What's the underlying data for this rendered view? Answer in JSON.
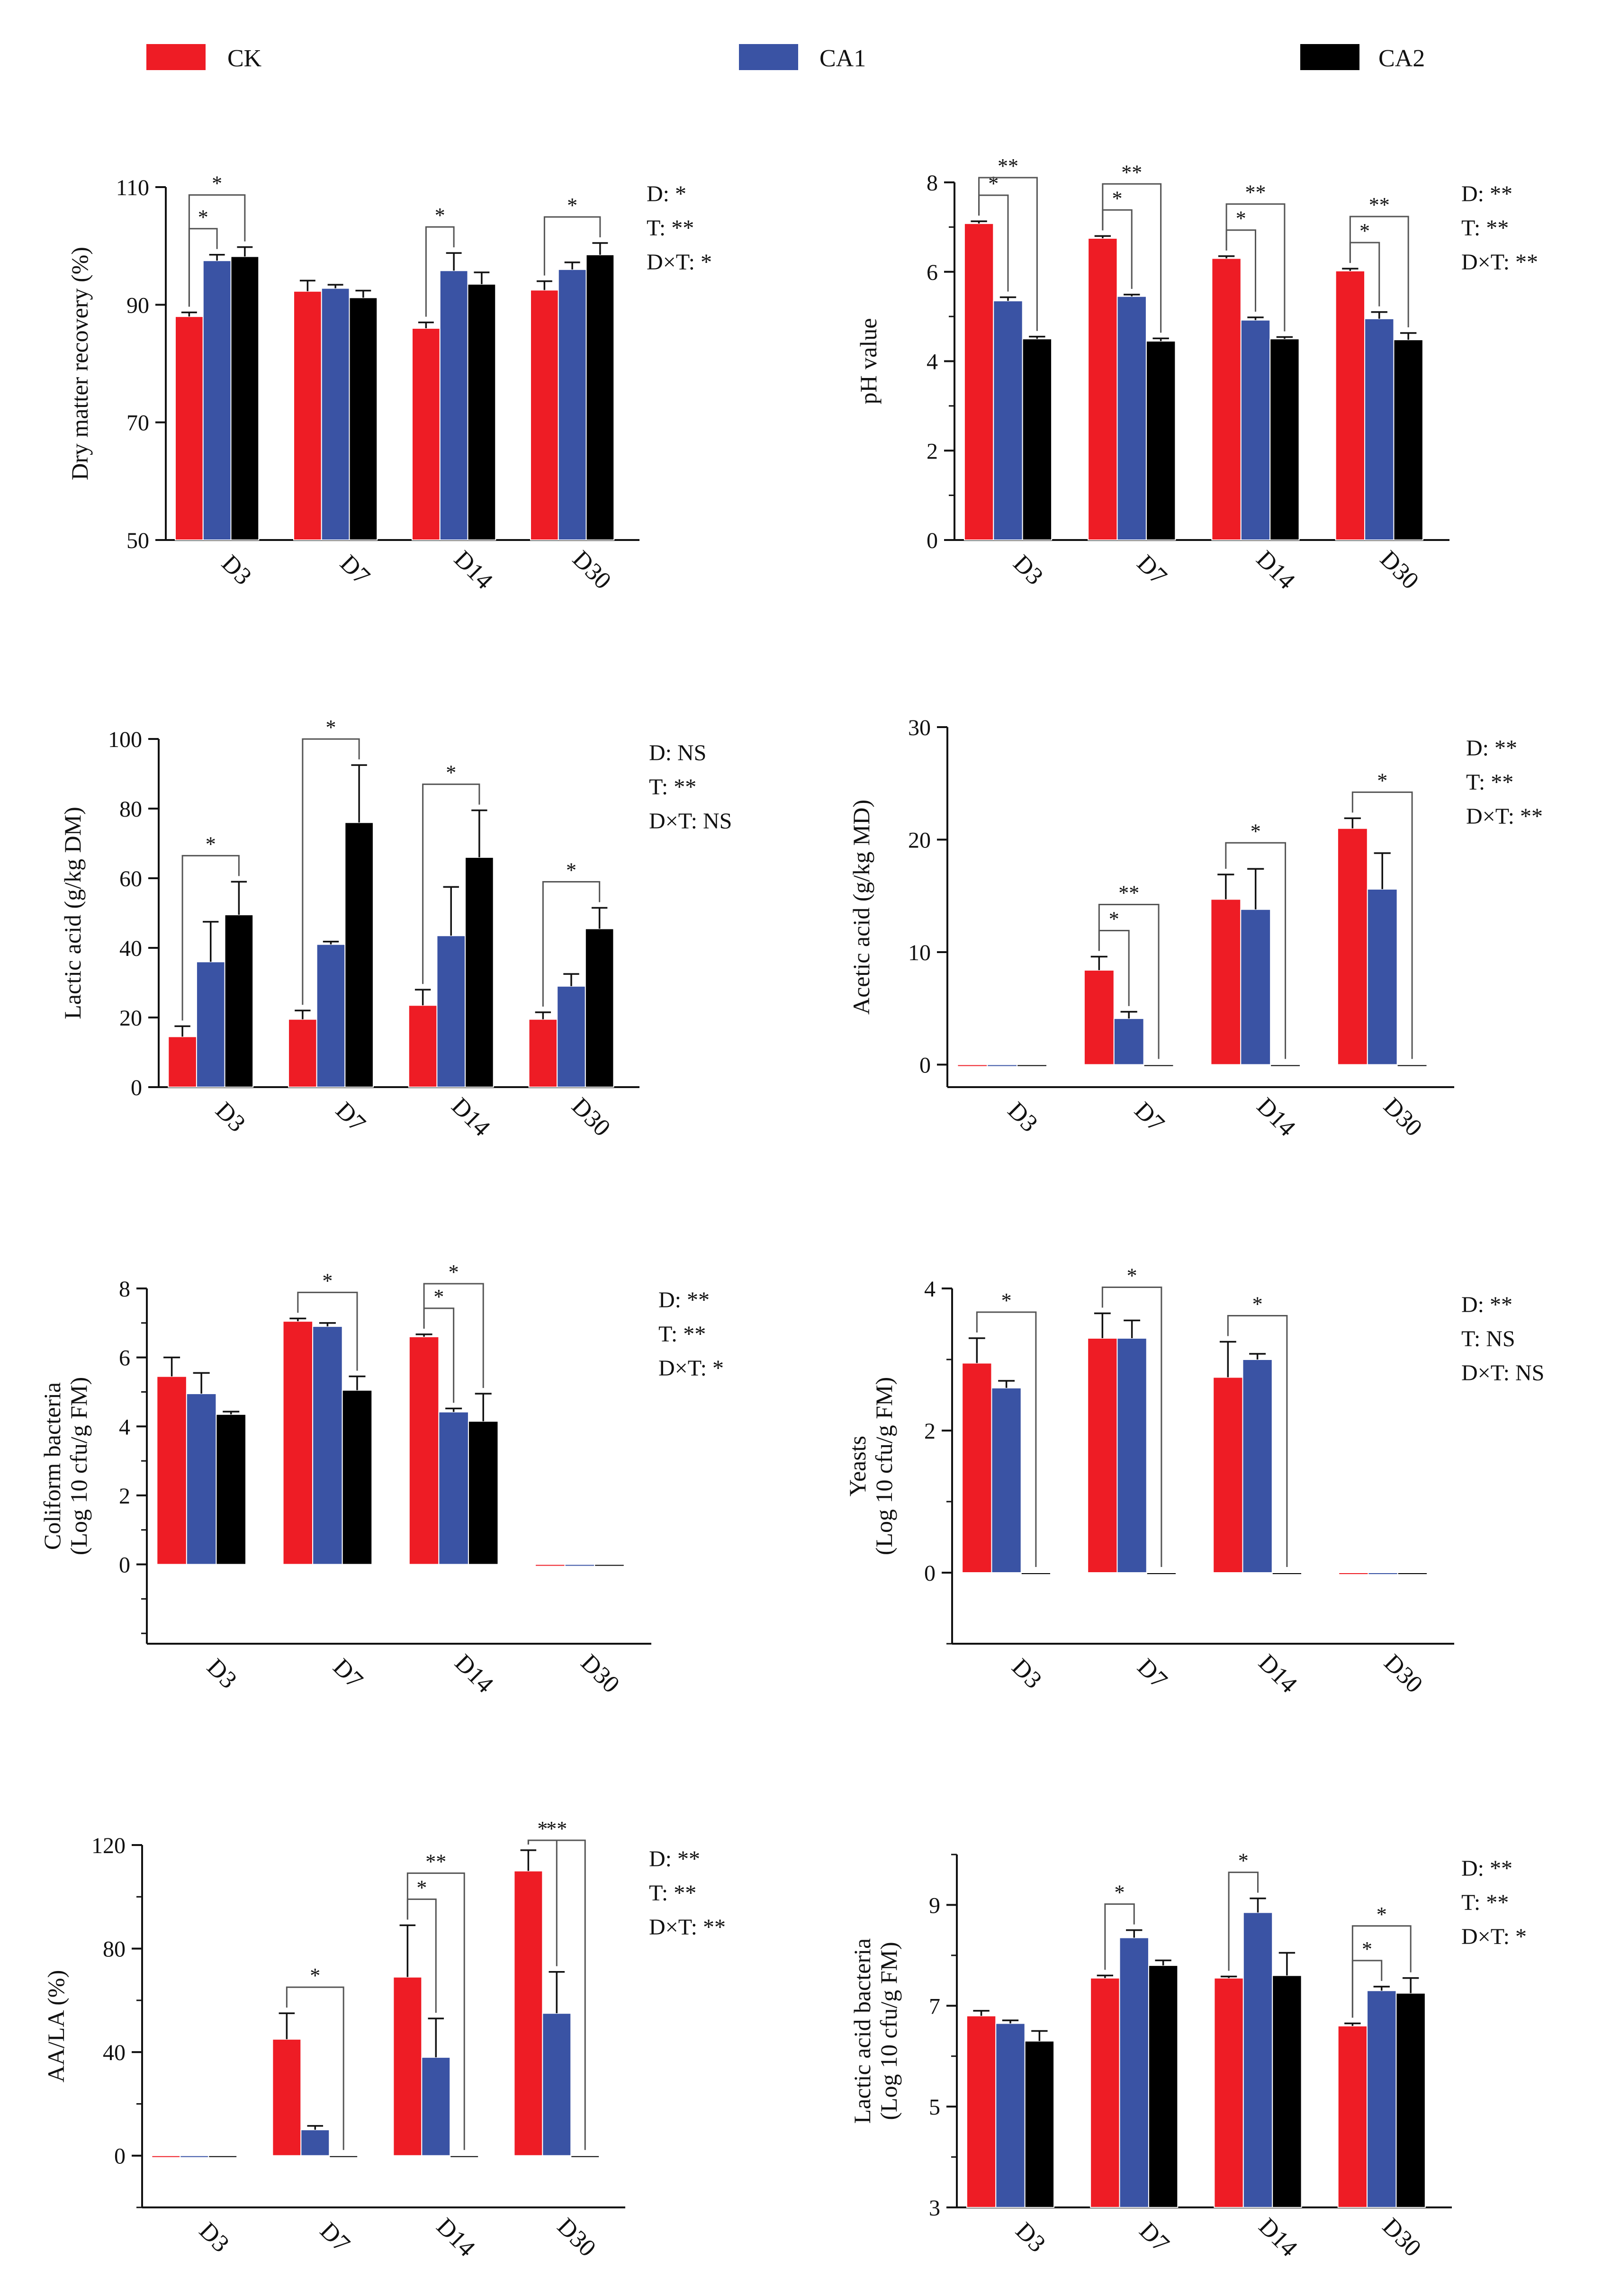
{
  "legend": [
    {
      "label": "CK",
      "color": "#ee1c25"
    },
    {
      "label": "CA1",
      "color": "#3a53a4"
    },
    {
      "label": "CA2",
      "color": "#000000"
    }
  ],
  "chart_data": [
    {
      "id": "dm",
      "type": "bar",
      "categories": [
        "D3",
        "D7",
        "D14",
        "D30"
      ],
      "series": [
        {
          "name": "CK",
          "values": [
            88,
            92.3,
            86,
            92.5
          ],
          "errors": [
            0.7,
            1.8,
            1,
            1.5
          ]
        },
        {
          "name": "CA1",
          "values": [
            97.5,
            92.8,
            95.8,
            96
          ],
          "errors": [
            1,
            0.6,
            3,
            1.2
          ]
        },
        {
          "name": "CA2",
          "values": [
            98.2,
            91.2,
            93.5,
            98.5
          ],
          "errors": [
            1.6,
            1.2,
            2,
            2
          ]
        }
      ],
      "ylabel": [
        "Dry matter recovery (%)"
      ],
      "ylim": [
        50,
        110
      ],
      "yticks": [
        50,
        70,
        90,
        110
      ],
      "minor_step": null,
      "stats": [
        "D: *",
        "T: **",
        "D×T: *"
      ],
      "brackets": [
        {
          "cat": 0,
          "from": 0,
          "to": 1,
          "label": "*"
        },
        {
          "cat": 0,
          "from": 0,
          "to": 2,
          "label": "*"
        },
        {
          "cat": 2,
          "from": 0,
          "to": 1,
          "label": "*"
        },
        {
          "cat": 3,
          "from": 0,
          "to": 2,
          "label": "*"
        }
      ]
    },
    {
      "id": "ph",
      "type": "bar",
      "categories": [
        "D3",
        "D7",
        "D14",
        "D30"
      ],
      "series": [
        {
          "name": "CK",
          "values": [
            7.08,
            6.75,
            6.3,
            6.02
          ],
          "errors": [
            0.05,
            0.05,
            0.05,
            0.05
          ]
        },
        {
          "name": "CA1",
          "values": [
            5.35,
            5.45,
            4.92,
            4.95
          ],
          "errors": [
            0.08,
            0.04,
            0.06,
            0.15
          ]
        },
        {
          "name": "CA2",
          "values": [
            4.5,
            4.45,
            4.5,
            4.48
          ],
          "errors": [
            0.05,
            0.06,
            0.04,
            0.15
          ]
        }
      ],
      "ylabel": [
        "pH value"
      ],
      "ylim": [
        0,
        8
      ],
      "yticks": [
        0,
        2,
        4,
        6,
        8
      ],
      "minor_step": 1,
      "stats": [
        "D: **",
        "T: **",
        "D×T: **"
      ],
      "brackets": [
        {
          "cat": 0,
          "from": 0,
          "to": 1,
          "label": "*"
        },
        {
          "cat": 0,
          "from": 0,
          "to": 2,
          "label": "**"
        },
        {
          "cat": 1,
          "from": 0,
          "to": 1,
          "label": "*"
        },
        {
          "cat": 1,
          "from": 0,
          "to": 2,
          "label": "**"
        },
        {
          "cat": 2,
          "from": 0,
          "to": 1,
          "label": "*"
        },
        {
          "cat": 2,
          "from": 0,
          "to": 2,
          "label": "**"
        },
        {
          "cat": 3,
          "from": 0,
          "to": 1,
          "label": "*"
        },
        {
          "cat": 3,
          "from": 0,
          "to": 2,
          "label": "**"
        }
      ]
    },
    {
      "id": "la",
      "type": "bar",
      "categories": [
        "D3",
        "D7",
        "D14",
        "D30"
      ],
      "series": [
        {
          "name": "CK",
          "values": [
            14.5,
            19.5,
            23.5,
            19.5
          ],
          "errors": [
            3,
            2.5,
            4.5,
            2
          ]
        },
        {
          "name": "CA1",
          "values": [
            36,
            41,
            43.5,
            29
          ],
          "errors": [
            11.5,
            0.8,
            14,
            3.5
          ]
        },
        {
          "name": "CA2",
          "values": [
            49.5,
            76,
            66,
            45.5
          ],
          "errors": [
            9.5,
            16.5,
            13.5,
            6
          ]
        }
      ],
      "ylabel": [
        "Lactic acid (g/kg DM)"
      ],
      "ylim": [
        0,
        100
      ],
      "yticks": [
        0,
        20,
        40,
        60,
        80,
        100
      ],
      "minor_step": null,
      "stats": [
        "D: NS",
        "T: **",
        "D×T: NS"
      ],
      "brackets": [
        {
          "cat": 0,
          "from": 0,
          "to": 2,
          "label": "*"
        },
        {
          "cat": 1,
          "from": 0,
          "to": 2,
          "label": "*"
        },
        {
          "cat": 2,
          "from": 0,
          "to": 2,
          "label": "*"
        },
        {
          "cat": 3,
          "from": 0,
          "to": 2,
          "label": "*"
        }
      ]
    },
    {
      "id": "aa",
      "type": "bar",
      "categories": [
        "D3",
        "D7",
        "D14",
        "D30"
      ],
      "series": [
        {
          "name": "CK",
          "values": [
            0,
            8.4,
            14.7,
            21
          ],
          "errors": [
            0,
            1.2,
            2.2,
            0.9
          ]
        },
        {
          "name": "CA1",
          "values": [
            0,
            4.1,
            13.8,
            15.6
          ],
          "errors": [
            0,
            0.6,
            3.6,
            3.2
          ]
        },
        {
          "name": "CA2",
          "values": [
            0,
            0,
            0,
            0
          ],
          "errors": [
            0,
            0,
            0,
            0
          ]
        }
      ],
      "ylabel": [
        "Acetic acid (g/kg MD)"
      ],
      "ylim": [
        -2,
        30
      ],
      "yticks": [
        0,
        10,
        20,
        30
      ],
      "minor_step": null,
      "stats": [
        "D: **",
        "T: **",
        "D×T: **"
      ],
      "brackets": [
        {
          "cat": 1,
          "from": 0,
          "to": 1,
          "label": "*"
        },
        {
          "cat": 1,
          "from": 0,
          "to": 2,
          "label": "**"
        },
        {
          "cat": 2,
          "from": 0,
          "to": 2,
          "label": "*"
        },
        {
          "cat": 3,
          "from": 0,
          "to": 2,
          "label": "*"
        }
      ]
    },
    {
      "id": "coli",
      "type": "bar",
      "categories": [
        "D3",
        "D7",
        "D14",
        "D30"
      ],
      "series": [
        {
          "name": "CK",
          "values": [
            5.45,
            7.05,
            6.6,
            0
          ],
          "errors": [
            0.55,
            0.08,
            0.07,
            0
          ]
        },
        {
          "name": "CA1",
          "values": [
            4.95,
            6.9,
            4.42,
            0
          ],
          "errors": [
            0.6,
            0.1,
            0.1,
            0
          ]
        },
        {
          "name": "CA2",
          "values": [
            4.35,
            5.05,
            4.15,
            0
          ],
          "errors": [
            0.08,
            0.4,
            0.8,
            0
          ]
        }
      ],
      "ylabel": [
        "Coliform bacteria",
        "(Log 10  cfu/g FM)"
      ],
      "ylim": [
        -2.3,
        8
      ],
      "yticks": [
        0,
        2,
        4,
        6,
        8
      ],
      "minor_step": 1,
      "stats": [
        "D: **",
        "T: **",
        "D×T: *"
      ],
      "brackets": [
        {
          "cat": 1,
          "from": 0,
          "to": 2,
          "label": "*"
        },
        {
          "cat": 2,
          "from": 0,
          "to": 1,
          "label": "*"
        },
        {
          "cat": 2,
          "from": 0,
          "to": 2,
          "label": "*"
        }
      ]
    },
    {
      "id": "yeast",
      "type": "bar",
      "categories": [
        "D3",
        "D7",
        "D14",
        "D30"
      ],
      "series": [
        {
          "name": "CK",
          "values": [
            2.95,
            3.3,
            2.75,
            0
          ],
          "errors": [
            0.35,
            0.35,
            0.5,
            0
          ]
        },
        {
          "name": "CA1",
          "values": [
            2.6,
            3.3,
            3.0,
            0
          ],
          "errors": [
            0.1,
            0.25,
            0.08,
            0
          ]
        },
        {
          "name": "CA2",
          "values": [
            0,
            0,
            0,
            0
          ],
          "errors": [
            0,
            0,
            0,
            0
          ]
        }
      ],
      "ylabel": [
        "Yeasts",
        "(Log 10  cfu/g FM)"
      ],
      "ylim": [
        -1,
        4
      ],
      "yticks": [
        0,
        2,
        4
      ],
      "minor_step": 1,
      "stats": [
        "D: **",
        "T: NS",
        "D×T: NS"
      ],
      "brackets": [
        {
          "cat": 0,
          "from": 0,
          "to": 2,
          "label": "*"
        },
        {
          "cat": 1,
          "from": 0,
          "to": 2,
          "label": "*"
        },
        {
          "cat": 2,
          "from": 0,
          "to": 2,
          "label": "*"
        }
      ]
    },
    {
      "id": "aala",
      "type": "bar",
      "categories": [
        "D3",
        "D7",
        "D14",
        "D30"
      ],
      "series": [
        {
          "name": "CK",
          "values": [
            0,
            45,
            69,
            110
          ],
          "errors": [
            0,
            10,
            20,
            8
          ]
        },
        {
          "name": "CA1",
          "values": [
            0,
            10,
            38,
            55
          ],
          "errors": [
            0,
            1.5,
            15,
            16
          ]
        },
        {
          "name": "CA2",
          "values": [
            0,
            0,
            0,
            0
          ],
          "errors": [
            0,
            0,
            0,
            0
          ]
        }
      ],
      "ylabel": [
        "AA/LA (%)"
      ],
      "ylim": [
        -20,
        120
      ],
      "yticks": [
        0,
        40,
        80,
        120
      ],
      "minor_step": 20,
      "stats": [
        "D: **",
        "T: **",
        "D×T: **"
      ],
      "brackets": [
        {
          "cat": 1,
          "from": 0,
          "to": 2,
          "label": "*"
        },
        {
          "cat": 2,
          "from": 0,
          "to": 1,
          "label": "*"
        },
        {
          "cat": 2,
          "from": 0,
          "to": 2,
          "label": "**"
        },
        {
          "cat": 3,
          "from": 0,
          "to": 1,
          "label": "*"
        },
        {
          "cat": 3,
          "from": 0,
          "to": 2,
          "label": "**"
        }
      ]
    },
    {
      "id": "lab",
      "type": "bar",
      "categories": [
        "D3",
        "D7",
        "D14",
        "D30"
      ],
      "series": [
        {
          "name": "CK",
          "values": [
            6.8,
            7.55,
            7.55,
            6.6
          ],
          "errors": [
            0.1,
            0.05,
            0.03,
            0.05
          ]
        },
        {
          "name": "CA1",
          "values": [
            6.65,
            8.35,
            8.85,
            7.3
          ],
          "errors": [
            0.06,
            0.15,
            0.28,
            0.08
          ]
        },
        {
          "name": "CA2",
          "values": [
            6.3,
            7.8,
            7.6,
            7.25
          ],
          "errors": [
            0.2,
            0.1,
            0.45,
            0.3
          ]
        }
      ],
      "ylabel": [
        "Lactic acid bacteria",
        "(Log 10  cfu/g FM)"
      ],
      "ylim": [
        3,
        10
      ],
      "yticks": [
        3,
        5,
        7,
        9
      ],
      "minor_step": 1,
      "stats": [
        "D: **",
        "T: **",
        "D×T: *"
      ],
      "brackets": [
        {
          "cat": 1,
          "from": 0,
          "to": 1,
          "label": "*"
        },
        {
          "cat": 2,
          "from": 0,
          "to": 1,
          "label": "*"
        },
        {
          "cat": 3,
          "from": 0,
          "to": 1,
          "label": "*"
        },
        {
          "cat": 3,
          "from": 0,
          "to": 2,
          "label": "*"
        }
      ]
    }
  ]
}
